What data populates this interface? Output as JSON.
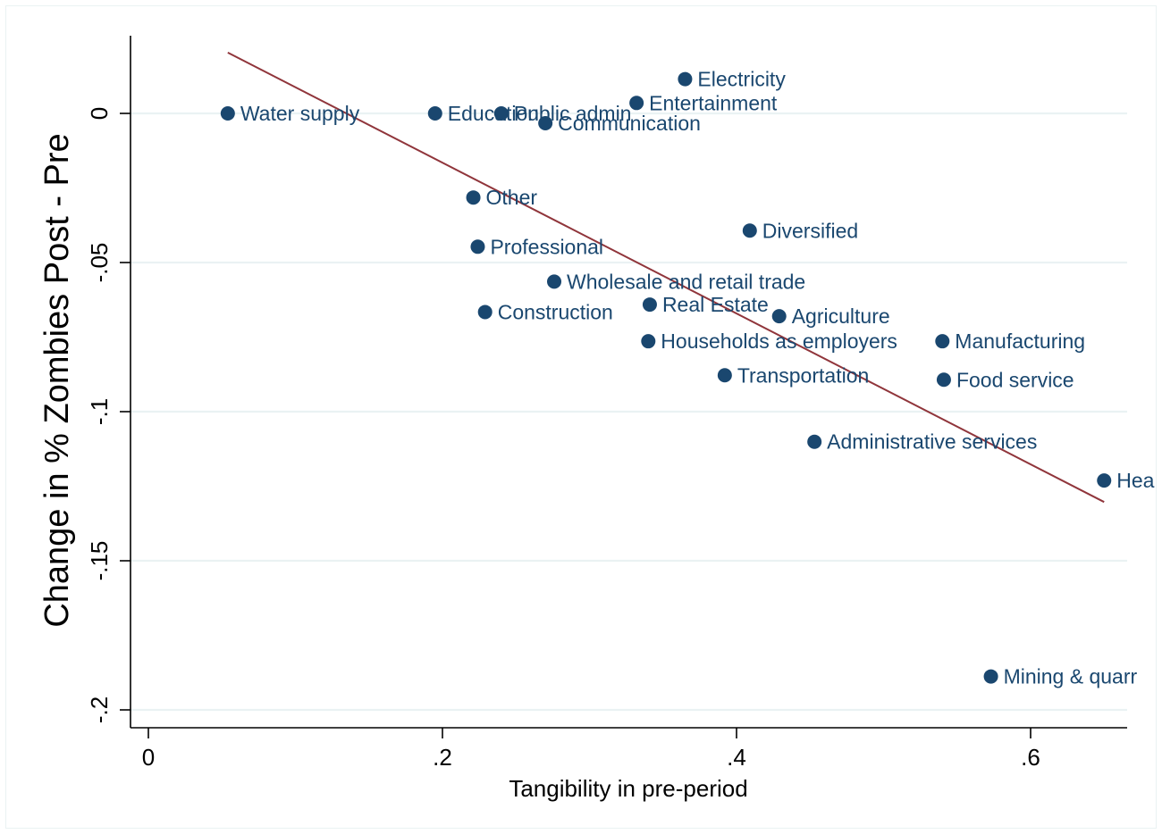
{
  "chart_data": {
    "type": "scatter",
    "xlabel": "Tangibility in pre-period",
    "ylabel": "Change in % Zombies Post - Pre",
    "xlim": [
      -0.01,
      0.67
    ],
    "ylim": [
      -0.205,
      0.026
    ],
    "x_ticks": [
      {
        "value": 0,
        "label": "0"
      },
      {
        "value": 0.2,
        "label": ".2"
      },
      {
        "value": 0.4,
        "label": ".4"
      },
      {
        "value": 0.6,
        "label": ".6"
      }
    ],
    "y_ticks": [
      {
        "value": 0,
        "label": "0"
      },
      {
        "value": -0.05,
        "label": "-.05"
      },
      {
        "value": -0.1,
        "label": "-.1"
      },
      {
        "value": -0.15,
        "label": "-.15"
      },
      {
        "value": -0.2,
        "label": "-.2"
      }
    ],
    "grid": "horizontal",
    "colors": {
      "points": "#1a476f",
      "fit_line": "#90353b",
      "grid": "#eaf2f3"
    },
    "points": [
      {
        "label": "Water supply",
        "x": 0.054,
        "y": 0.0
      },
      {
        "label": "Education",
        "x": 0.195,
        "y": 0.0
      },
      {
        "label": "Public admin",
        "x": 0.24,
        "y": 0.0
      },
      {
        "label": "Communication",
        "x": 0.27,
        "y": -0.0033
      },
      {
        "label": "Entertainment",
        "x": 0.332,
        "y": 0.0035
      },
      {
        "label": "Electricity",
        "x": 0.365,
        "y": 0.0115
      },
      {
        "label": "Other",
        "x": 0.221,
        "y": -0.0282
      },
      {
        "label": "Diversified",
        "x": 0.409,
        "y": -0.0393
      },
      {
        "label": "Professional",
        "x": 0.224,
        "y": -0.0447
      },
      {
        "label": "Wholesale and retail trade",
        "x": 0.276,
        "y": -0.0564
      },
      {
        "label": "Real Estate",
        "x": 0.341,
        "y": -0.0641
      },
      {
        "label": "Construction",
        "x": 0.229,
        "y": -0.0666
      },
      {
        "label": "Agriculture",
        "x": 0.429,
        "y": -0.068
      },
      {
        "label": "Households as employers",
        "x": 0.34,
        "y": -0.0764
      },
      {
        "label": "Manufacturing",
        "x": 0.54,
        "y": -0.0764
      },
      {
        "label": "Transportation",
        "x": 0.392,
        "y": -0.0878
      },
      {
        "label": "Food service",
        "x": 0.541,
        "y": -0.0893
      },
      {
        "label": "Administrative services",
        "x": 0.453,
        "y": -0.1101
      },
      {
        "label": "Hea",
        "x": 0.65,
        "y": -0.1231
      },
      {
        "label": "Mining & quarr",
        "x": 0.573,
        "y": -0.1888
      }
    ],
    "fit_line": {
      "x": [
        0.054,
        0.65
      ],
      "y": [
        0.0204,
        -0.1303
      ]
    }
  }
}
